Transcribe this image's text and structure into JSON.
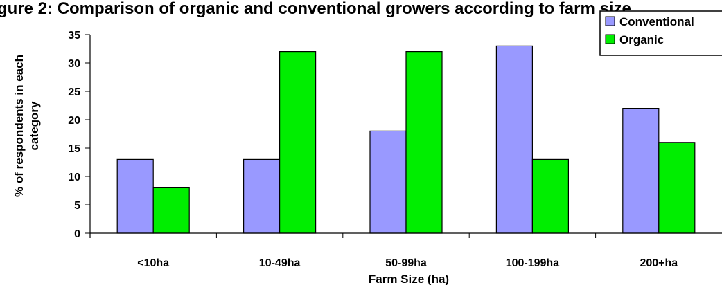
{
  "chart_data": {
    "type": "bar",
    "title": "gure 2: Comparison of organic and conventional growers according to farm size",
    "xlabel": "Farm Size (ha)",
    "ylabel": "% of respondents in each category",
    "ylabel_lines": [
      "% of respondents in each",
      "category"
    ],
    "categories": [
      "<10ha",
      "10-49ha",
      "50-99ha",
      "100-199ha",
      "200+ha"
    ],
    "ylim": [
      0,
      35
    ],
    "yticks": [
      0,
      5,
      10,
      15,
      20,
      25,
      30,
      35
    ],
    "grid": false,
    "legend": "top-right",
    "series": [
      {
        "name": "Conventional",
        "color": "#9999ff",
        "values": [
          13,
          13,
          18,
          33,
          22
        ]
      },
      {
        "name": "Organic",
        "color": "#00ee00",
        "values": [
          8,
          32,
          32,
          13,
          16
        ]
      }
    ]
  }
}
